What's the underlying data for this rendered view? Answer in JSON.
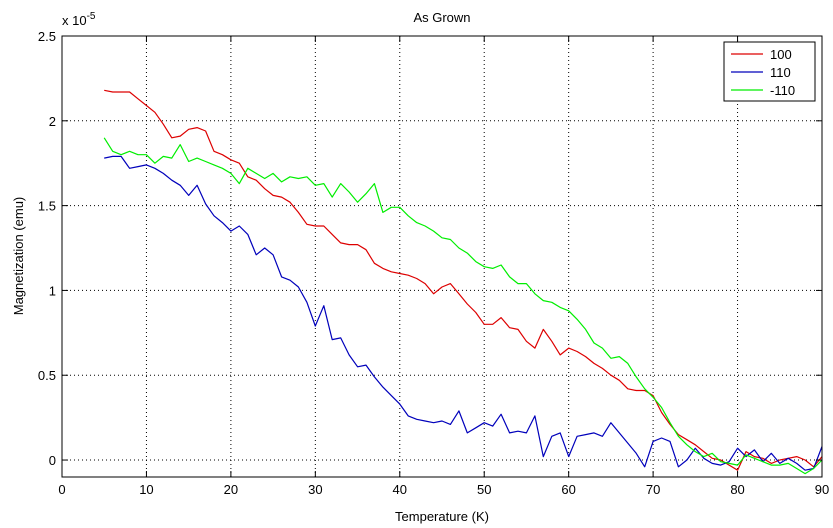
{
  "chart_data": {
    "type": "line",
    "title": "As Grown",
    "xlabel": "Temperature (K)",
    "ylabel": "Magnetization (emu)",
    "y_multiplier_label": "x 10",
    "y_multiplier_exponent": "-5",
    "xlim": [
      0,
      90
    ],
    "ylim": [
      -0.1,
      2.5
    ],
    "xticks": [
      0,
      10,
      20,
      30,
      40,
      50,
      60,
      70,
      80,
      90
    ],
    "yticks": [
      0,
      0.5,
      1,
      1.5,
      2,
      2.5
    ],
    "ytick_labels": [
      "0",
      "0.5",
      "1",
      "1.5",
      "2",
      "2.5"
    ],
    "grid": true,
    "legend_position": "top-right",
    "series": [
      {
        "name": "100",
        "color": "#dd0000",
        "x": [
          5,
          6,
          7,
          8,
          9,
          10,
          11,
          12,
          13,
          14,
          15,
          16,
          17,
          18,
          19,
          20,
          21,
          22,
          23,
          24,
          25,
          26,
          27,
          28,
          29,
          30,
          31,
          32,
          33,
          34,
          35,
          36,
          37,
          38,
          39,
          40,
          41,
          42,
          43,
          44,
          45,
          46,
          47,
          48,
          49,
          50,
          51,
          52,
          53,
          54,
          55,
          56,
          57,
          58,
          59,
          60,
          61,
          62,
          63,
          64,
          65,
          66,
          67,
          68,
          69,
          70,
          71,
          72,
          73,
          74,
          75,
          76,
          77,
          78,
          79,
          80,
          81,
          82,
          83,
          84,
          85,
          86,
          87,
          88,
          89,
          90
        ],
        "y": [
          2.18,
          2.17,
          2.17,
          2.17,
          2.13,
          2.09,
          2.05,
          1.98,
          1.9,
          1.91,
          1.95,
          1.96,
          1.94,
          1.82,
          1.8,
          1.77,
          1.75,
          1.67,
          1.65,
          1.6,
          1.56,
          1.55,
          1.52,
          1.46,
          1.39,
          1.38,
          1.38,
          1.33,
          1.28,
          1.27,
          1.27,
          1.24,
          1.16,
          1.13,
          1.11,
          1.1,
          1.09,
          1.07,
          1.04,
          0.98,
          1.02,
          1.04,
          0.98,
          0.92,
          0.87,
          0.8,
          0.8,
          0.84,
          0.78,
          0.77,
          0.7,
          0.66,
          0.77,
          0.7,
          0.62,
          0.66,
          0.64,
          0.61,
          0.57,
          0.54,
          0.5,
          0.47,
          0.42,
          0.41,
          0.41,
          0.38,
          0.28,
          0.21,
          0.15,
          0.12,
          0.09,
          0.05,
          0.01,
          0.0,
          -0.03,
          -0.06,
          0.05,
          0.02,
          0.01,
          -0.02,
          0.0,
          0.01,
          0.02,
          0.0,
          -0.04,
          0.02
        ]
      },
      {
        "name": "110",
        "color": "#0000bb",
        "x": [
          5,
          6,
          7,
          8,
          9,
          10,
          11,
          12,
          13,
          14,
          15,
          16,
          17,
          18,
          19,
          20,
          21,
          22,
          23,
          24,
          25,
          26,
          27,
          28,
          29,
          30,
          31,
          32,
          33,
          34,
          35,
          36,
          37,
          38,
          39,
          40,
          41,
          42,
          43,
          44,
          45,
          46,
          47,
          48,
          49,
          50,
          51,
          52,
          53,
          54,
          55,
          56,
          57,
          58,
          59,
          60,
          61,
          62,
          63,
          64,
          65,
          66,
          67,
          68,
          69,
          70,
          71,
          72,
          73,
          74,
          75,
          76,
          77,
          78,
          79,
          80,
          81,
          82,
          83,
          84,
          85,
          86,
          87,
          88,
          89,
          90
        ],
        "y": [
          1.78,
          1.79,
          1.79,
          1.72,
          1.73,
          1.74,
          1.72,
          1.69,
          1.65,
          1.62,
          1.56,
          1.62,
          1.51,
          1.44,
          1.4,
          1.35,
          1.38,
          1.33,
          1.21,
          1.25,
          1.21,
          1.08,
          1.06,
          1.02,
          0.93,
          0.79,
          0.91,
          0.71,
          0.72,
          0.62,
          0.55,
          0.56,
          0.49,
          0.43,
          0.38,
          0.33,
          0.26,
          0.24,
          0.23,
          0.22,
          0.23,
          0.21,
          0.29,
          0.16,
          0.19,
          0.22,
          0.2,
          0.27,
          0.16,
          0.17,
          0.16,
          0.26,
          0.02,
          0.14,
          0.16,
          0.02,
          0.14,
          0.15,
          0.16,
          0.14,
          0.22,
          0.16,
          0.1,
          0.04,
          -0.04,
          0.11,
          0.13,
          0.11,
          -0.04,
          0.0,
          0.07,
          0.01,
          -0.02,
          -0.03,
          -0.01,
          0.07,
          0.02,
          0.06,
          -0.01,
          0.04,
          -0.02,
          0.01,
          -0.02,
          -0.06,
          -0.05,
          0.08
        ]
      },
      {
        "name": "-110",
        "color": "#00ee00",
        "x": [
          5,
          6,
          7,
          8,
          9,
          10,
          11,
          12,
          13,
          14,
          15,
          16,
          17,
          18,
          19,
          20,
          21,
          22,
          23,
          24,
          25,
          26,
          27,
          28,
          29,
          30,
          31,
          32,
          33,
          34,
          35,
          36,
          37,
          38,
          39,
          40,
          41,
          42,
          43,
          44,
          45,
          46,
          47,
          48,
          49,
          50,
          51,
          52,
          53,
          54,
          55,
          56,
          57,
          58,
          59,
          60,
          61,
          62,
          63,
          64,
          65,
          66,
          67,
          68,
          69,
          70,
          71,
          72,
          73,
          74,
          75,
          76,
          77,
          78,
          79,
          80,
          81,
          82,
          83,
          84,
          85,
          86,
          87,
          88,
          89,
          90
        ],
        "y": [
          1.9,
          1.82,
          1.8,
          1.82,
          1.8,
          1.8,
          1.75,
          1.79,
          1.78,
          1.86,
          1.76,
          1.78,
          1.76,
          1.74,
          1.72,
          1.69,
          1.63,
          1.72,
          1.69,
          1.66,
          1.69,
          1.64,
          1.67,
          1.66,
          1.67,
          1.62,
          1.63,
          1.55,
          1.63,
          1.58,
          1.52,
          1.57,
          1.63,
          1.46,
          1.49,
          1.49,
          1.44,
          1.4,
          1.38,
          1.35,
          1.31,
          1.3,
          1.25,
          1.22,
          1.17,
          1.14,
          1.13,
          1.15,
          1.08,
          1.04,
          1.04,
          0.98,
          0.94,
          0.93,
          0.9,
          0.88,
          0.83,
          0.77,
          0.69,
          0.66,
          0.6,
          0.61,
          0.57,
          0.49,
          0.42,
          0.37,
          0.31,
          0.22,
          0.14,
          0.09,
          0.05,
          0.02,
          0.04,
          -0.01,
          -0.02,
          -0.03,
          0.03,
          0.01,
          -0.01,
          -0.03,
          -0.03,
          -0.02,
          -0.05,
          -0.08,
          -0.05,
          0.0
        ]
      }
    ]
  }
}
